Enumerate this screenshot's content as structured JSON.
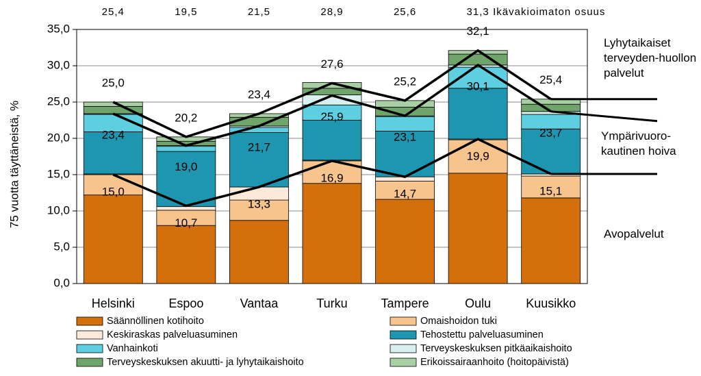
{
  "chart_data": {
    "type": "bar",
    "stacked": true,
    "y_label": "75 vuotta täyttäneistä, %",
    "categories": [
      "Helsinki",
      "Espoo",
      "Vantaa",
      "Turku",
      "Tampere",
      "Oulu",
      "Kuusikko"
    ],
    "ylim": [
      0,
      35
    ],
    "yticks": [
      {
        "value": 0,
        "label": "0,0"
      },
      {
        "value": 5,
        "label": "5,0"
      },
      {
        "value": 10,
        "label": "10,0"
      },
      {
        "value": 15,
        "label": "15,0"
      },
      {
        "value": 20,
        "label": "20,0"
      },
      {
        "value": 25,
        "label": "25,0"
      },
      {
        "value": 30,
        "label": "30,0"
      },
      {
        "value": 35,
        "label": "35,0"
      }
    ],
    "grid": true,
    "series": [
      {
        "name": "Säännöllinen kotihoito",
        "color": "#d4700c",
        "values": [
          12.2,
          8.0,
          8.7,
          13.8,
          11.6,
          15.2,
          11.8
        ]
      },
      {
        "name": "Omaishoidon tuki",
        "color": "#f8c48e",
        "values": [
          2.8,
          2.1,
          2.8,
          3.1,
          2.5,
          4.6,
          3.0
        ]
      },
      {
        "name": "Keskiraskas palveluasuminen",
        "color": "#fde9d9",
        "values": [
          0.1,
          0.5,
          1.8,
          0.1,
          0.6,
          0.1,
          0.3
        ]
      },
      {
        "name": "Tehostettu palveluasuminen",
        "color": "#1f96b0",
        "values": [
          5.8,
          7.6,
          7.5,
          5.5,
          6.3,
          7.0,
          6.2
        ]
      },
      {
        "name": "Vanhainkoti",
        "color": "#5ecfe0",
        "values": [
          2.4,
          0.7,
          0.7,
          2.1,
          2.0,
          2.9,
          2.0
        ]
      },
      {
        "name": "Terveyskeskuksen pitkäaikaishoito",
        "color": "#d8f0ee",
        "values": [
          0.1,
          0.1,
          0.2,
          1.4,
          0.1,
          0.3,
          0.4
        ]
      },
      {
        "name": "Terveyskeskuksen akuutti- ja lyhytaikaishoito",
        "color": "#6fa56a",
        "values": [
          1.0,
          0.6,
          1.2,
          0.9,
          1.2,
          1.5,
          1.0
        ]
      },
      {
        "name": "Erikoissairaanhoito (hoitopäivistä)",
        "color": "#a9cfa4",
        "values": [
          0.6,
          0.6,
          0.5,
          0.8,
          0.9,
          0.5,
          0.7
        ]
      }
    ],
    "lines": [
      {
        "name": "Avopalvelut",
        "color": "#000000",
        "values": [
          15.0,
          10.7,
          13.3,
          16.9,
          14.7,
          19.9,
          15.1
        ],
        "value_labels": [
          "15,0",
          "10,7",
          "13,3",
          "16,9",
          "14,7",
          "19,9",
          "15,1"
        ]
      },
      {
        "name": "Ympärivuoro-kautinen hoiva",
        "color": "#000000",
        "values": [
          23.4,
          19.0,
          21.7,
          25.9,
          23.1,
          30.1,
          23.7
        ],
        "value_labels": [
          "23,4",
          "19,0",
          "21,7",
          "25,9",
          "23,1",
          "30,1",
          "23,7"
        ]
      },
      {
        "name": "Lyhytaikaiset terveyden-huollon palvelut",
        "color": "#000000",
        "values": [
          25.0,
          20.2,
          23.4,
          27.6,
          25.2,
          32.1,
          25.4
        ],
        "value_labels": [
          "25,0",
          "20,2",
          "23,4",
          "27,6",
          "25,2",
          "32,1",
          "25,4"
        ]
      }
    ],
    "unadjusted": {
      "name": "Ikävakioimaton osuus",
      "values": [
        25.4,
        19.5,
        21.5,
        28.9,
        25.6,
        31.3,
        null
      ],
      "value_labels": [
        "25,4",
        "19,5",
        "21,5",
        "28,9",
        "25,6",
        "31,3",
        null
      ]
    }
  }
}
